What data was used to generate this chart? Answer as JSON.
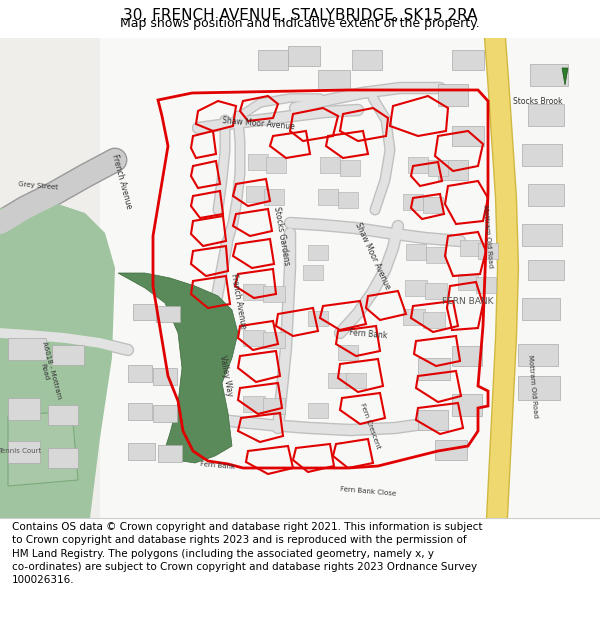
{
  "title": "30, FRENCH AVENUE, STALYBRIDGE, SK15 2RA",
  "subtitle": "Map shows position and indicative extent of the property.",
  "footer_line1": "Contains OS data © Crown copyright and database right 2021. This information is subject",
  "footer_line2": "to Crown copyright and database rights 2023 and is reproduced with the permission of",
  "footer_line3": "HM Land Registry. The polygons (including the associated geometry, namely x, y",
  "footer_line4": "co-ordinates) are subject to Crown copyright and database rights 2023 Ordnance Survey",
  "footer_line5": "100026316.",
  "bg_color": "#ffffff",
  "map_bg": "#f0eeea",
  "road_color": "#e8e0c8",
  "road_border": "#d4c898",
  "green_color": "#5a8a5a",
  "light_green": "#90b890",
  "building_color": "#d8d8d8",
  "building_border": "#aaaaaa",
  "red_outline_color": "#e00000",
  "yellow_road": "#f0d870",
  "yellow_road_border": "#d0b840",
  "title_fontsize": 11,
  "subtitle_fontsize": 9,
  "footer_fontsize": 7.5,
  "label_color": "#333333",
  "label_fontsize": 5.5
}
